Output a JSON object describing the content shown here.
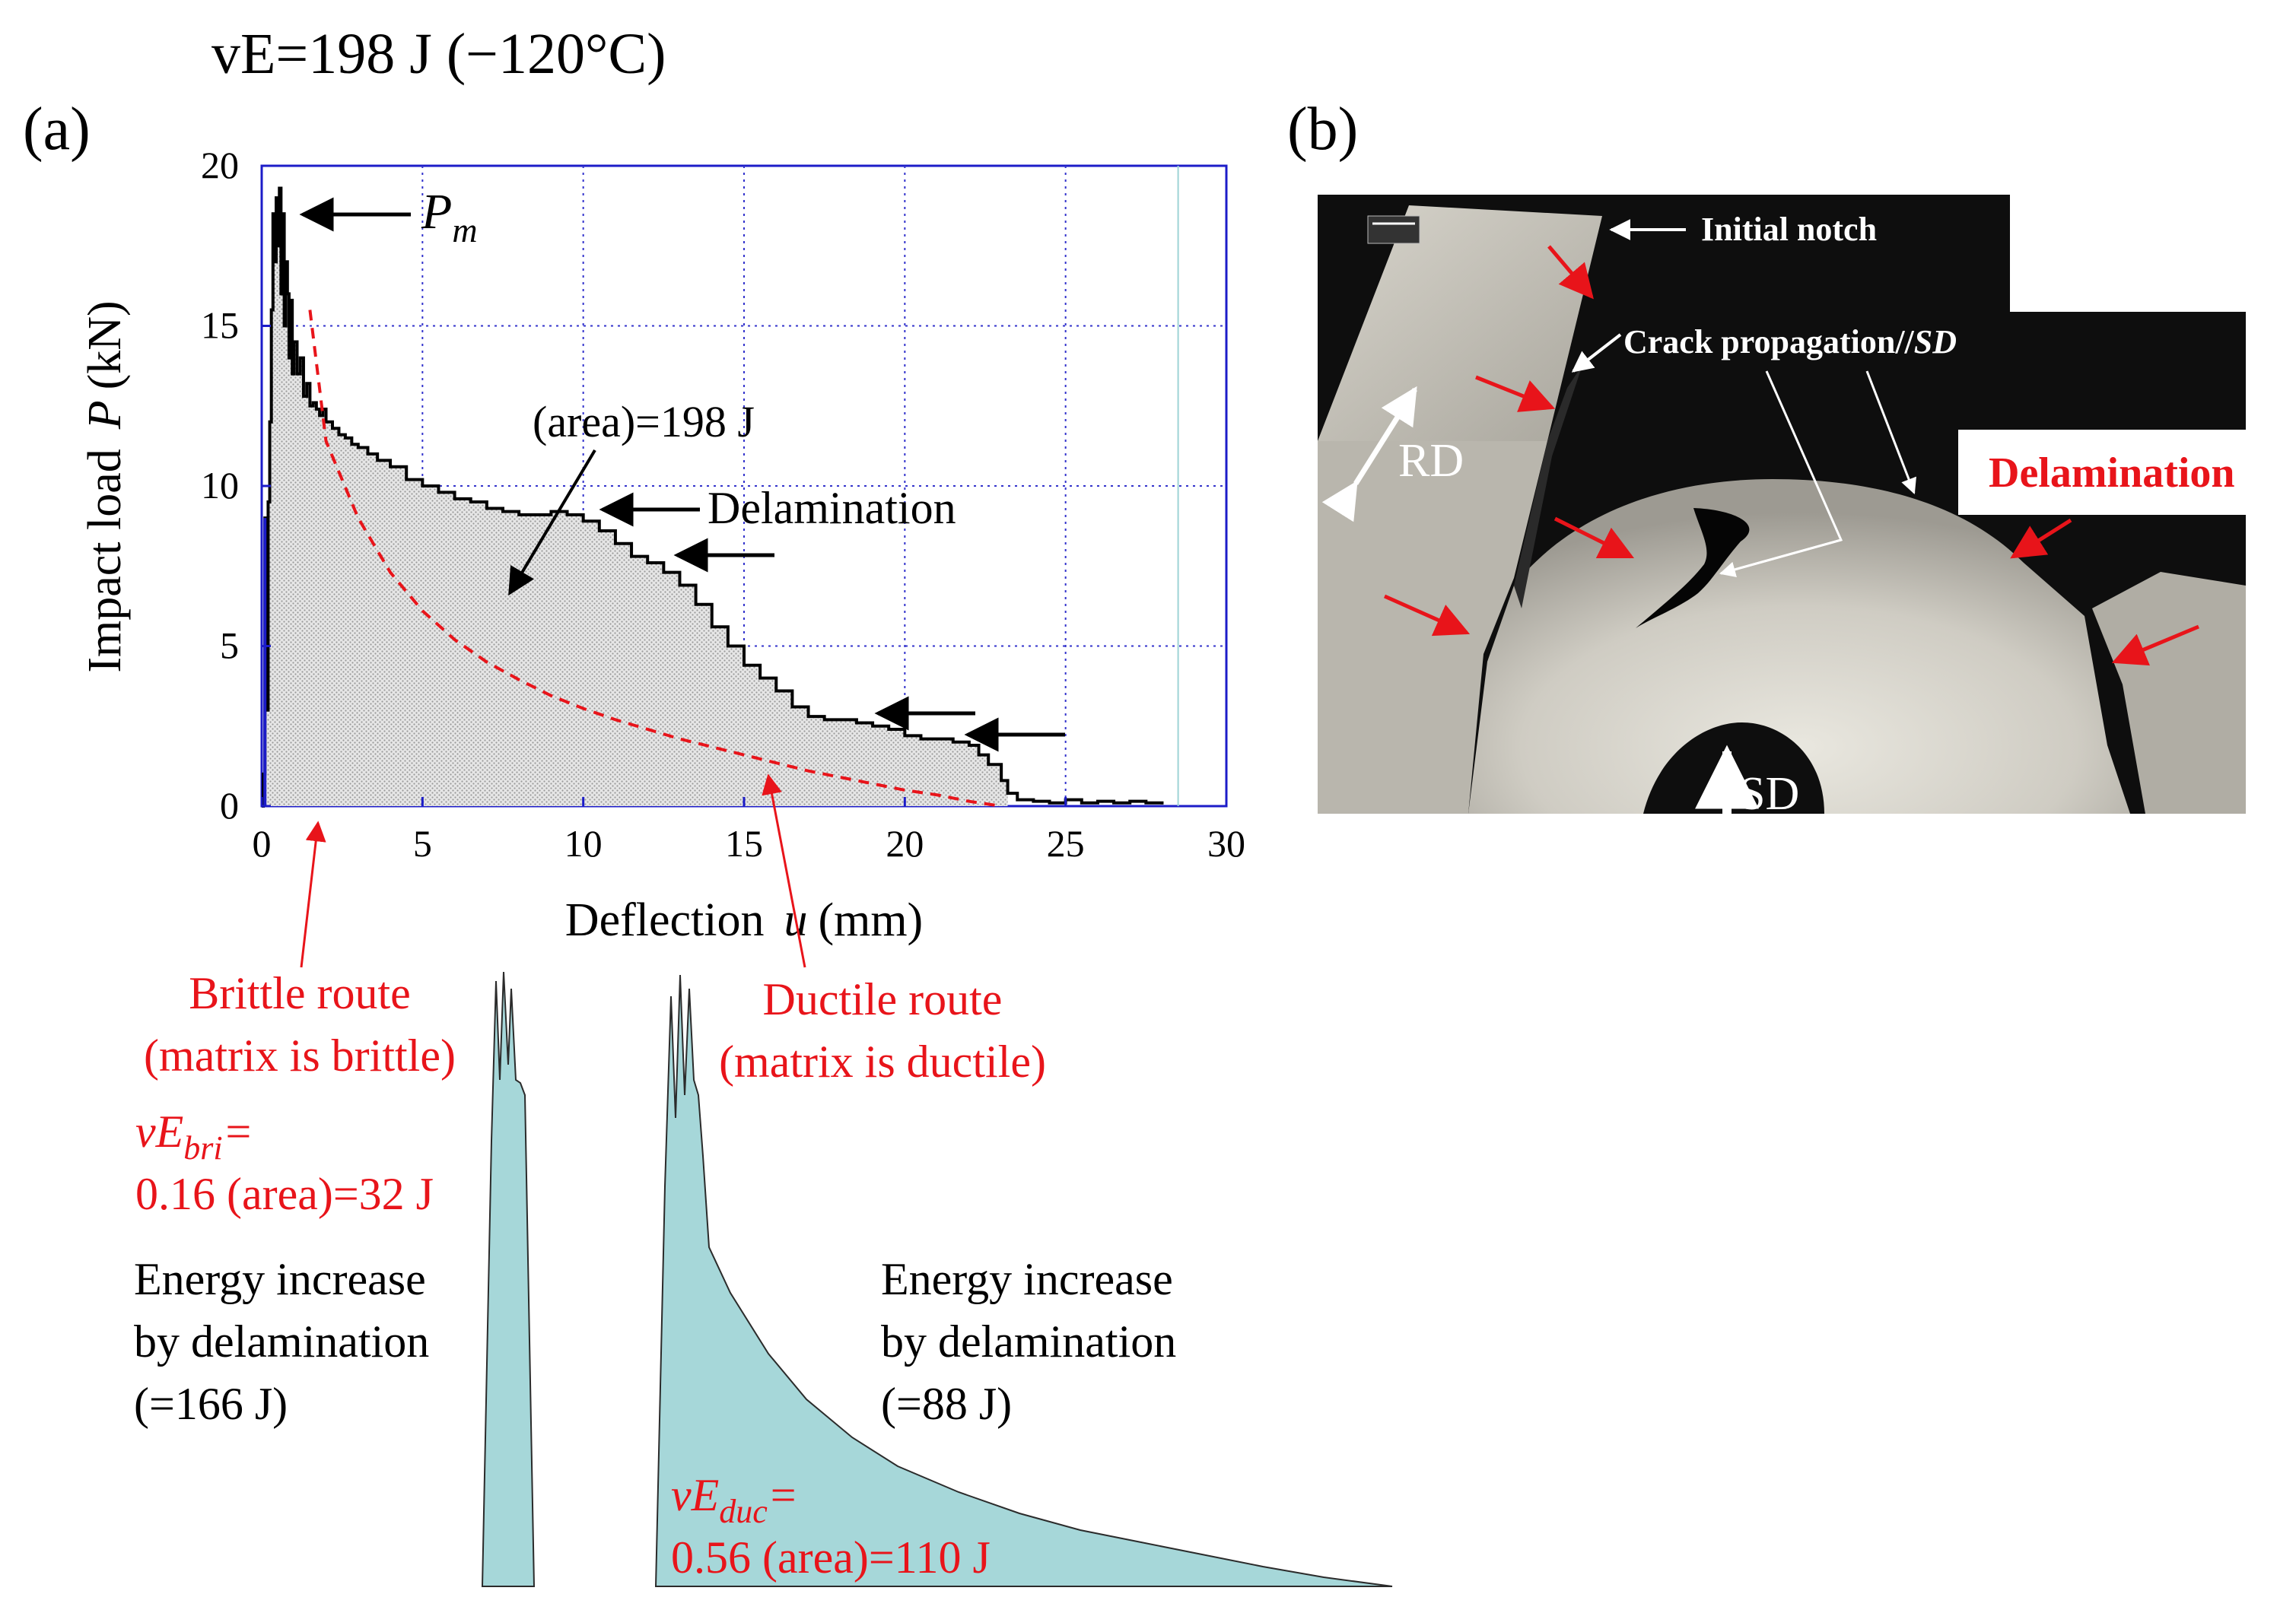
{
  "header": {
    "title": "vE=198 J (−120°C)"
  },
  "panel_a": {
    "label": "(a)"
  },
  "panel_b": {
    "label": "(b)"
  },
  "chart_data": {
    "type": "line",
    "title": "vE=198 J (−120°C)",
    "xlabel_text": "Deflection",
    "xlabel_var": "u",
    "xlabel_unit": "(mm)",
    "ylabel_text": "Impact load",
    "ylabel_var": "P",
    "ylabel_unit": "(kN)",
    "xlim": [
      0,
      30
    ],
    "ylim": [
      0,
      20
    ],
    "xticks": [
      0,
      5,
      10,
      15,
      20,
      25,
      30
    ],
    "yticks": [
      0,
      5,
      10,
      15,
      20
    ],
    "grid": true,
    "series": [
      {
        "name": "Impact load curve",
        "color": "#000000",
        "fill": "#d9d9d9",
        "x": [
          0,
          0.05,
          0.1,
          0.15,
          0.2,
          0.25,
          0.3,
          0.35,
          0.4,
          0.45,
          0.5,
          0.55,
          0.6,
          0.65,
          0.7,
          0.75,
          0.8,
          0.85,
          0.9,
          0.95,
          1.0,
          1.1,
          1.2,
          1.3,
          1.4,
          1.5,
          1.6,
          1.7,
          1.8,
          1.9,
          2.0,
          2.2,
          2.4,
          2.6,
          2.8,
          3.0,
          3.3,
          3.6,
          4.0,
          4.5,
          5.0,
          5.5,
          6.0,
          6.5,
          7.0,
          7.5,
          8.0,
          8.5,
          9.0,
          9.5,
          10.0,
          10.5,
          11.0,
          11.5,
          12.0,
          12.5,
          13.0,
          13.5,
          14.0,
          14.5,
          15.0,
          15.5,
          16.0,
          16.5,
          17.0,
          17.5,
          18.0,
          18.5,
          19.0,
          19.5,
          20.0,
          20.5,
          21.0,
          21.5,
          22.0,
          22.3,
          22.6,
          23.0,
          23.2,
          23.5,
          24.0,
          24.5,
          25.0,
          25.5,
          26.0,
          26.5,
          27.0,
          27.5,
          28.0
        ],
        "y": [
          0,
          1.0,
          9.0,
          3.0,
          9.5,
          12.0,
          15.5,
          18.5,
          17.0,
          19.0,
          17.5,
          19.3,
          16.0,
          18.5,
          15.0,
          17.0,
          16.0,
          14.0,
          15.8,
          13.5,
          14.5,
          13.5,
          14.0,
          12.8,
          13.2,
          12.5,
          12.6,
          12.4,
          12.2,
          12.4,
          12.0,
          11.8,
          11.6,
          11.5,
          11.3,
          11.2,
          11.0,
          10.8,
          10.6,
          10.2,
          10.0,
          9.8,
          9.6,
          9.5,
          9.3,
          9.2,
          9.1,
          9.1,
          9.2,
          9.1,
          8.9,
          8.6,
          8.2,
          7.8,
          7.6,
          7.3,
          6.9,
          6.3,
          5.6,
          5.0,
          4.4,
          4.0,
          3.6,
          3.1,
          2.8,
          2.7,
          2.7,
          2.6,
          2.5,
          2.4,
          2.2,
          2.1,
          2.1,
          2.0,
          1.9,
          1.6,
          1.3,
          0.8,
          0.4,
          0.2,
          0.15,
          0.1,
          0.2,
          0.1,
          0.15,
          0.1,
          0.15,
          0.1,
          0.05
        ]
      },
      {
        "name": "Ductile route",
        "color": "#e8141a",
        "style": "dashed",
        "x": [
          1.5,
          2,
          3,
          4,
          5,
          6,
          7,
          8,
          9,
          10,
          11,
          12,
          13,
          14,
          15,
          16,
          17,
          18,
          19,
          20,
          21,
          22,
          23
        ],
        "y": [
          15.5,
          11.4,
          9.0,
          7.3,
          6.1,
          5.2,
          4.5,
          3.95,
          3.45,
          3.05,
          2.7,
          2.4,
          2.1,
          1.85,
          1.6,
          1.35,
          1.1,
          0.9,
          0.7,
          0.5,
          0.35,
          0.15,
          0.0
        ]
      }
    ],
    "annotations": [
      {
        "text_var": "P",
        "text_sub": "m",
        "at": "peak"
      },
      {
        "text": "(area)=198  J"
      },
      {
        "text": "Delamination"
      },
      {
        "text": "Brittle route",
        "color": "#e8141a"
      },
      {
        "text": "(matrix is brittle)",
        "color": "#e8141a"
      },
      {
        "text": "Ductile route",
        "color": "#e8141a"
      },
      {
        "text": "(matrix is ductile)",
        "color": "#e8141a"
      },
      {
        "text_var": "vE",
        "text_sub": "bri",
        "text_suffix": "=",
        "color": "#e8141a"
      },
      {
        "text": "0.16 (area)=32  J",
        "color": "#e8141a"
      },
      {
        "text_var": "vE",
        "text_sub": "duc",
        "text_suffix": "=",
        "color": "#e8141a"
      },
      {
        "text": "0.56 (area)=110  J",
        "color": "#e8141a"
      },
      {
        "text": "Energy increase"
      },
      {
        "text": "by delamination"
      },
      {
        "text": "(=166  J)"
      },
      {
        "text": "Energy increase"
      },
      {
        "text": "by delamination"
      },
      {
        "text": "(=88  J)"
      }
    ]
  },
  "insets": {
    "brittle_color": "#a6d7d9",
    "ductile_color": "#a6d7d9"
  },
  "photo": {
    "initial_notch": "Initial  notch",
    "crack_prefix": "Crack propagation//",
    "crack_sd": "SD",
    "rd": "RD",
    "sd": "SD",
    "delamination": "Delamination",
    "arrow_color": "#e8141a"
  }
}
